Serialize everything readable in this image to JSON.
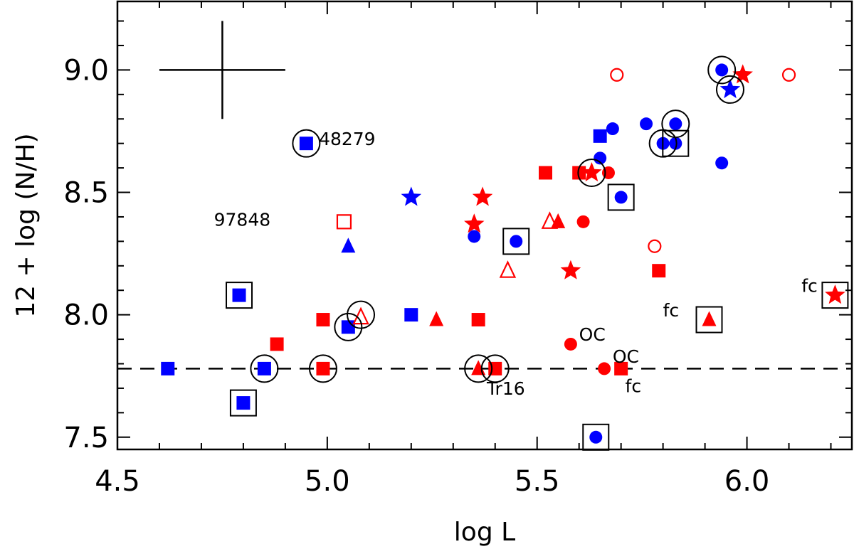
{
  "chart_data": {
    "type": "scatter",
    "title": "",
    "xlabel": "log L",
    "ylabel": "12 + log (N/H)",
    "xlim": [
      4.5,
      6.25
    ],
    "ylim": [
      7.45,
      9.28
    ],
    "x_ticks": [
      "4.5",
      "5.0",
      "5.5",
      "6.0"
    ],
    "y_ticks": [
      "7.5",
      "8.0",
      "8.5",
      "9.0"
    ],
    "reference_line": {
      "y": 7.78,
      "style": "dashed"
    },
    "error_bar": {
      "x": 4.75,
      "y": 9.0,
      "dx": 0.15,
      "dy_up": 0.2,
      "dy_down": 0.2
    },
    "colors": {
      "blue": "#0000ff",
      "red": "#ff0000",
      "black": "#000000"
    },
    "series": [
      {
        "name": "blue filled squares",
        "color": "blue",
        "marker": "square",
        "filled": true,
        "points": [
          [
            4.62,
            7.78
          ],
          [
            4.79,
            8.08
          ],
          [
            4.8,
            7.64
          ],
          [
            4.85,
            7.78
          ],
          [
            4.95,
            8.7
          ],
          [
            5.05,
            7.95
          ],
          [
            5.2,
            8.0
          ],
          [
            5.65,
            8.73
          ]
        ]
      },
      {
        "name": "blue filled circles",
        "color": "blue",
        "marker": "circle",
        "filled": true,
        "points": [
          [
            5.35,
            8.32
          ],
          [
            5.45,
            8.3
          ],
          [
            5.64,
            7.5
          ],
          [
            5.65,
            8.64
          ],
          [
            5.68,
            8.76
          ],
          [
            5.7,
            8.48
          ],
          [
            5.76,
            8.78
          ],
          [
            5.8,
            8.7
          ],
          [
            5.83,
            8.7
          ],
          [
            5.83,
            8.78
          ],
          [
            5.94,
            8.62
          ],
          [
            5.94,
            9.0
          ]
        ]
      },
      {
        "name": "blue filled triangles",
        "color": "blue",
        "marker": "triangle",
        "filled": true,
        "points": [
          [
            5.05,
            8.28
          ]
        ]
      },
      {
        "name": "blue filled stars",
        "color": "blue",
        "marker": "star",
        "filled": true,
        "points": [
          [
            5.2,
            8.48
          ],
          [
            5.96,
            8.92
          ]
        ]
      },
      {
        "name": "red filled squares",
        "color": "red",
        "marker": "square",
        "filled": true,
        "points": [
          [
            4.88,
            7.88
          ],
          [
            4.99,
            7.78
          ],
          [
            4.99,
            7.98
          ],
          [
            5.36,
            7.98
          ],
          [
            5.4,
            7.78
          ],
          [
            5.52,
            8.58
          ],
          [
            5.6,
            8.58
          ],
          [
            5.7,
            7.78
          ],
          [
            5.79,
            8.18
          ]
        ]
      },
      {
        "name": "red filled circles",
        "color": "red",
        "marker": "circle",
        "filled": true,
        "points": [
          [
            5.58,
            7.88
          ],
          [
            5.61,
            8.38
          ],
          [
            5.66,
            7.78
          ],
          [
            5.67,
            8.58
          ]
        ]
      },
      {
        "name": "red filled triangles",
        "color": "red",
        "marker": "triangle",
        "filled": true,
        "points": [
          [
            5.26,
            7.98
          ],
          [
            5.36,
            7.78
          ],
          [
            5.55,
            8.38
          ],
          [
            5.91,
            7.98
          ]
        ]
      },
      {
        "name": "red filled stars",
        "color": "red",
        "marker": "star",
        "filled": true,
        "points": [
          [
            5.35,
            8.37
          ],
          [
            5.37,
            8.48
          ],
          [
            5.58,
            8.18
          ],
          [
            5.63,
            8.58
          ],
          [
            5.99,
            8.98
          ],
          [
            6.21,
            8.08
          ]
        ]
      },
      {
        "name": "red open squares",
        "color": "red",
        "marker": "square",
        "filled": false,
        "points": [
          [
            5.04,
            8.38
          ]
        ]
      },
      {
        "name": "red open circles",
        "color": "red",
        "marker": "circle",
        "filled": false,
        "points": [
          [
            5.69,
            8.98
          ],
          [
            5.78,
            8.28
          ],
          [
            6.1,
            8.98
          ]
        ]
      },
      {
        "name": "red open triangles",
        "color": "red",
        "marker": "triangle",
        "filled": false,
        "points": [
          [
            5.08,
            7.99
          ],
          [
            5.43,
            8.18
          ],
          [
            5.53,
            8.38
          ]
        ]
      }
    ],
    "enclosing_circles": [
      [
        4.95,
        8.7
      ],
      [
        4.85,
        7.78
      ],
      [
        4.99,
        7.78
      ],
      [
        5.05,
        7.95
      ],
      [
        5.08,
        8.0
      ],
      [
        5.36,
        7.78
      ],
      [
        5.4,
        7.78
      ],
      [
        5.63,
        8.58
      ],
      [
        5.8,
        8.7
      ],
      [
        5.83,
        8.78
      ],
      [
        5.94,
        9.0
      ],
      [
        5.96,
        8.92
      ]
    ],
    "enclosing_squares": [
      [
        4.79,
        8.08
      ],
      [
        4.8,
        7.64
      ],
      [
        5.45,
        8.3
      ],
      [
        5.64,
        7.5
      ],
      [
        5.7,
        8.48
      ],
      [
        5.83,
        8.7
      ],
      [
        5.91,
        7.98
      ],
      [
        6.21,
        8.08
      ]
    ],
    "annotations": [
      {
        "text": "48279",
        "x": 4.98,
        "y": 8.72
      },
      {
        "text": "97848",
        "x": 4.73,
        "y": 8.39
      },
      {
        "text": "OC",
        "x": 5.6,
        "y": 7.92
      },
      {
        "text": "OC",
        "x": 5.68,
        "y": 7.83
      },
      {
        "text": "Tr16",
        "x": 5.38,
        "y": 7.7
      },
      {
        "text": "fc",
        "x": 5.71,
        "y": 7.71
      },
      {
        "text": "fc",
        "x": 5.8,
        "y": 8.02
      },
      {
        "text": "fc",
        "x": 6.13,
        "y": 8.12
      }
    ]
  }
}
